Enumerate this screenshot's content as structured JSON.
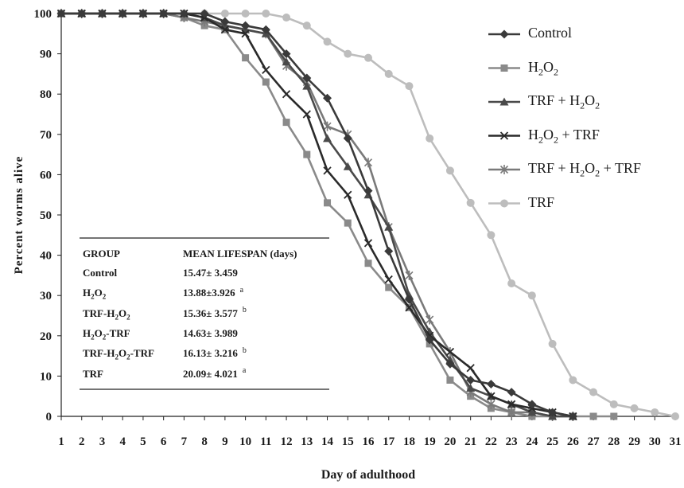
{
  "chart_data": {
    "type": "line",
    "title": "",
    "xlabel": "Day of adulthood",
    "ylabel": "Percent worms alive",
    "xlim": [
      1,
      31
    ],
    "ylim": [
      0,
      100
    ],
    "x_ticks": [
      "1",
      "2",
      "3",
      "4",
      "5",
      "6",
      "7",
      "8",
      "9",
      "10",
      "11",
      "12",
      "13",
      "14",
      "15",
      "16",
      "17",
      "18",
      "19",
      "20",
      "21",
      "22",
      "23",
      "24",
      "25",
      "26",
      "27",
      "28",
      "29",
      "30",
      "31"
    ],
    "y_ticks": [
      "0",
      "10",
      "20",
      "30",
      "40",
      "50",
      "60",
      "70",
      "80",
      "90",
      "100"
    ],
    "grid": false,
    "legend_position": "top-right",
    "series": [
      {
        "name": "Control",
        "html": "Control",
        "color": "#3a3a3a",
        "marker": "diamond",
        "x": [
          1,
          2,
          3,
          4,
          5,
          6,
          7,
          8,
          9,
          10,
          11,
          12,
          13,
          14,
          15,
          16,
          17,
          18,
          19,
          20,
          21,
          22,
          23,
          24,
          25,
          26
        ],
        "y": [
          100,
          100,
          100,
          100,
          100,
          100,
          100,
          100,
          98,
          97,
          96,
          90,
          84,
          79,
          69,
          56,
          41,
          29,
          19,
          13,
          9,
          8,
          6,
          3,
          1,
          0
        ]
      },
      {
        "name": "H2O2",
        "html": "H<sub>2</sub>O<sub>2</sub>",
        "color": "#8a8a8a",
        "marker": "square",
        "x": [
          1,
          2,
          3,
          4,
          5,
          6,
          7,
          8,
          9,
          10,
          11,
          12,
          13,
          14,
          15,
          16,
          17,
          18,
          19,
          20,
          21,
          22,
          23,
          24,
          25,
          26,
          27,
          28
        ],
        "y": [
          100,
          100,
          100,
          100,
          100,
          100,
          99,
          97,
          96,
          89,
          83,
          73,
          65,
          53,
          48,
          38,
          32,
          27,
          18,
          9,
          5,
          2,
          1,
          0,
          0,
          0,
          0,
          0
        ]
      },
      {
        "name": "TRF + H2O2",
        "html": "TRF + H<sub>2</sub>O<sub>2</sub>",
        "color": "#4a4a4a",
        "marker": "triangle",
        "x": [
          1,
          2,
          3,
          4,
          5,
          6,
          7,
          8,
          9,
          10,
          11,
          12,
          13,
          14,
          15,
          16,
          17,
          18,
          19,
          20,
          21,
          22,
          23,
          24,
          25,
          26
        ],
        "y": [
          100,
          100,
          100,
          100,
          100,
          100,
          100,
          99,
          97,
          96,
          95,
          88,
          82,
          69,
          62,
          55,
          47,
          30,
          21,
          14,
          7,
          5,
          3,
          1,
          0,
          0
        ]
      },
      {
        "name": "H2O2 + TRF",
        "html": "H<sub>2</sub>O<sub>2</sub> + TRF",
        "color": "#2a2a2a",
        "marker": "x",
        "x": [
          1,
          2,
          3,
          4,
          5,
          6,
          7,
          8,
          9,
          10,
          11,
          12,
          13,
          14,
          15,
          16,
          17,
          18,
          19,
          20,
          21,
          22,
          23,
          24,
          25,
          26
        ],
        "y": [
          100,
          100,
          100,
          100,
          100,
          100,
          100,
          99,
          96,
          95,
          86,
          80,
          75,
          61,
          55,
          43,
          34,
          27,
          20,
          16,
          12,
          5,
          3,
          2,
          1,
          0
        ]
      },
      {
        "name": "TRF + H2O2 + TRF",
        "html": "TRF + H<sub>2</sub>O<sub>2</sub> + TRF",
        "color": "#7a7a7a",
        "marker": "asterisk",
        "x": [
          1,
          2,
          3,
          4,
          5,
          6,
          7,
          8,
          9,
          10,
          11,
          12,
          13,
          14,
          15,
          16,
          17,
          18,
          19,
          20,
          21,
          22,
          23,
          24,
          25,
          26
        ],
        "y": [
          100,
          100,
          100,
          100,
          100,
          100,
          99,
          98,
          97,
          96,
          95,
          87,
          83,
          72,
          70,
          63,
          47,
          35,
          24,
          16,
          6,
          3,
          1,
          1,
          0,
          0
        ]
      },
      {
        "name": "TRF",
        "html": "TRF",
        "color": "#bdbdbd",
        "marker": "circle",
        "x": [
          1,
          2,
          3,
          4,
          5,
          6,
          7,
          8,
          9,
          10,
          11,
          12,
          13,
          14,
          15,
          16,
          17,
          18,
          19,
          20,
          21,
          22,
          23,
          24,
          25,
          26,
          27,
          28,
          29,
          30,
          31
        ],
        "y": [
          100,
          100,
          100,
          100,
          100,
          100,
          100,
          100,
          100,
          100,
          100,
          99,
          97,
          93,
          90,
          89,
          85,
          82,
          69,
          61,
          53,
          45,
          33,
          30,
          18,
          9,
          6,
          3,
          2,
          1,
          0
        ]
      }
    ],
    "table": {
      "headers": [
        "GROUP",
        "MEAN LIFESPAN  (days)"
      ],
      "rows": [
        {
          "group": "Control",
          "group_html": "Control",
          "value": "15.47± 3.459",
          "sup": ""
        },
        {
          "group": "H2O2",
          "group_html": "H<sub>2</sub>O<sub>2</sub>",
          "value": "13.88±3.926",
          "sup": "a"
        },
        {
          "group": "TRF-H2O2",
          "group_html": "TRF-H<sub>2</sub>O<sub>2</sub>",
          "value": "15.36± 3.577",
          "sup": "b"
        },
        {
          "group": "H2O2-TRF",
          "group_html": "H<sub>2</sub>O<sub>2</sub>-TRF",
          "value": "14.63± 3.989",
          "sup": ""
        },
        {
          "group": "TRF-H2O2-TRF",
          "group_html": "TRF-H<sub>2</sub>O<sub>2</sub>-TRF",
          "value": "16.13± 3.216",
          "sup": "b"
        },
        {
          "group": "TRF",
          "group_html": "TRF",
          "value": "20.09± 4.021",
          "sup": "a"
        }
      ]
    }
  }
}
